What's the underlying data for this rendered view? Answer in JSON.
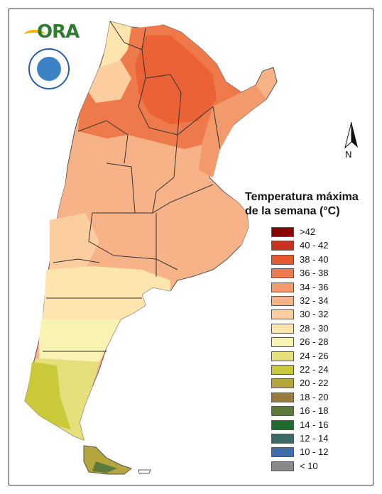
{
  "logo": {
    "text": "ORA",
    "seal_color": "#2b5ea8"
  },
  "north_arrow": {
    "label": "N"
  },
  "legend": {
    "title_line1": "Temperatura máxima",
    "title_line2": "de la semana (°C)",
    "items": [
      {
        "label": ">42",
        "color": "#8b0000"
      },
      {
        "label": "40 - 42",
        "color": "#c8321e"
      },
      {
        "label": "38 - 40",
        "color": "#e8582e"
      },
      {
        "label": "36 - 38",
        "color": "#ee7a4c"
      },
      {
        "label": "34 - 36",
        "color": "#f39a6c"
      },
      {
        "label": "32 - 34",
        "color": "#f7b288"
      },
      {
        "label": "30 - 32",
        "color": "#fbcd9f"
      },
      {
        "label": "28 - 30",
        "color": "#fde5ad"
      },
      {
        "label": "26 - 28",
        "color": "#f9f3b3"
      },
      {
        "label": "24 - 26",
        "color": "#e6e07c"
      },
      {
        "label": "22 - 24",
        "color": "#c9c93a"
      },
      {
        "label": "20 - 22",
        "color": "#b4a53c"
      },
      {
        "label": "18 - 20",
        "color": "#9a7a3a"
      },
      {
        "label": "16 - 18",
        "color": "#5c7a3a"
      },
      {
        "label": "14 - 16",
        "color": "#1f6b2e"
      },
      {
        "label": "12 - 14",
        "color": "#3b6a6a"
      },
      {
        "label": "10 - 12",
        "color": "#3d6fae"
      },
      {
        "label": "< 10",
        "color": "#8a8a8a"
      }
    ]
  }
}
